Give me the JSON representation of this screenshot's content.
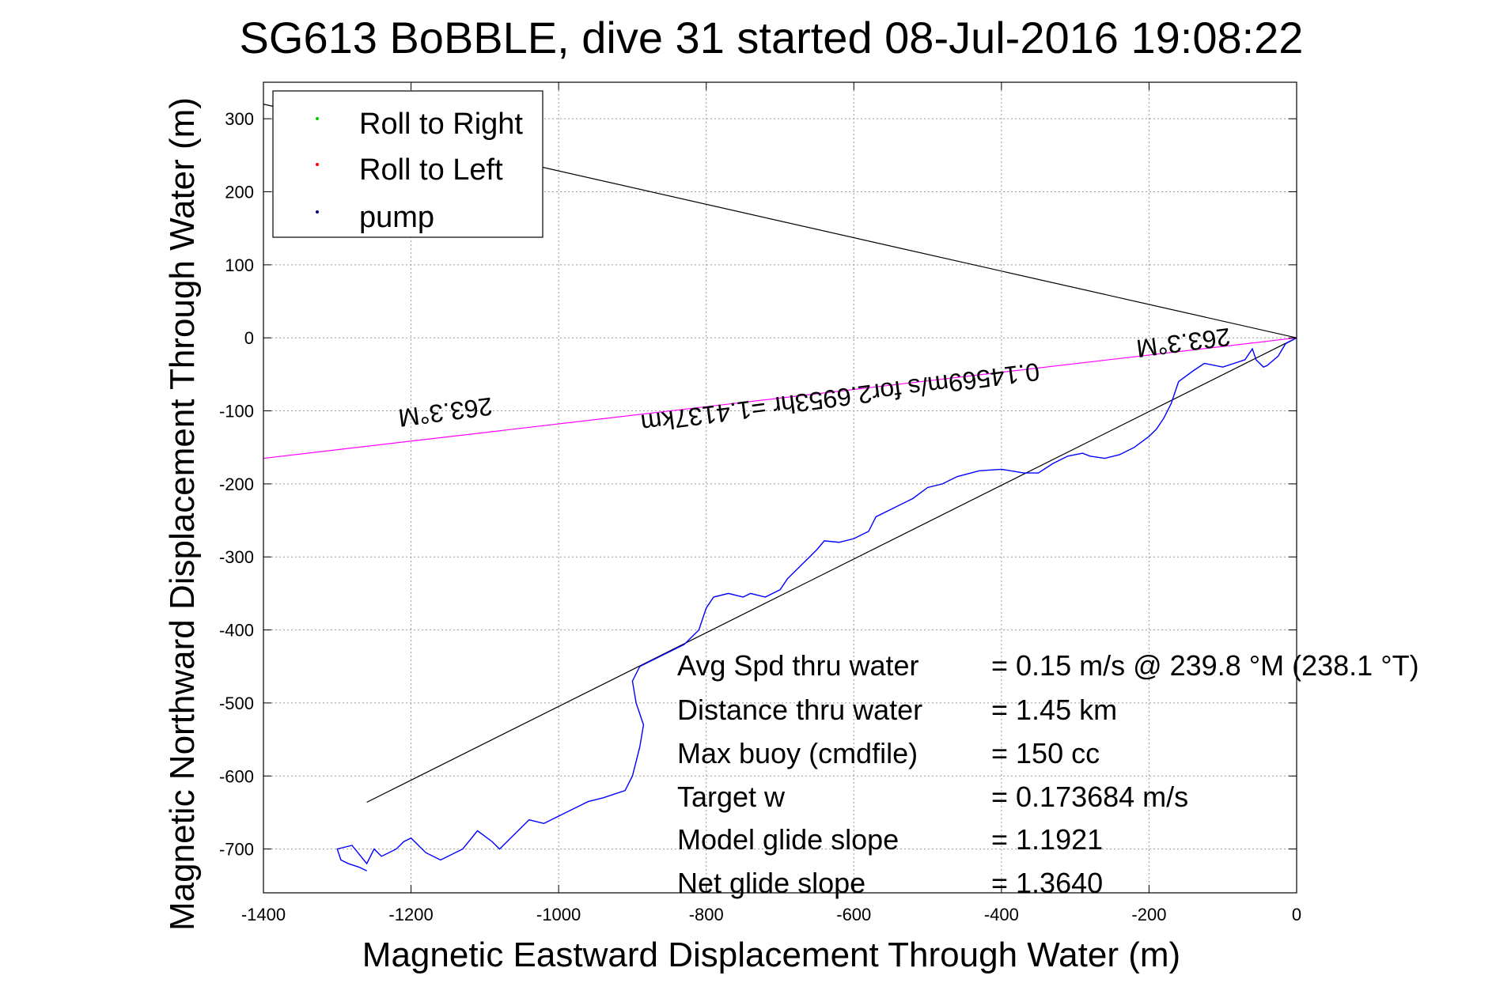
{
  "chart_data": {
    "type": "line",
    "title": "SG613 BoBBLE, dive 31 started 08-Jul-2016 19:08:22",
    "xlabel": "Magnetic Eastward Displacement Through Water (m)",
    "ylabel": "Magnetic Northward Displacement Through Water (m)",
    "xlim": [
      -1400,
      0
    ],
    "ylim": [
      -760,
      350
    ],
    "grid": true,
    "x_ticks": [
      -1400,
      -1200,
      -1000,
      -800,
      -600,
      -400,
      -200,
      0
    ],
    "y_ticks": [
      300,
      200,
      100,
      0,
      -100,
      -200,
      -300,
      -400,
      -500,
      -600,
      -700
    ],
    "legend": {
      "placement": "top-left",
      "entries": [
        {
          "label": "Roll to Right",
          "color": "#00cc00"
        },
        {
          "label": "Roll to Left",
          "color": "#ff0000"
        },
        {
          "label": "pump",
          "color": "#000080"
        }
      ]
    },
    "series": [
      {
        "color": "#0000ff",
        "x": [
          0,
          -15,
          -25,
          -40,
          -45,
          -55,
          -60,
          -70,
          -100,
          -125,
          -140,
          -160,
          -170,
          -180,
          -190,
          -200,
          -220,
          -240,
          -260,
          -280,
          -290,
          -310,
          -330,
          -350,
          -370,
          -400,
          -430,
          -460,
          -480,
          -500,
          -520,
          -550,
          -570,
          -580,
          -600,
          -620,
          -640,
          -650,
          -670,
          -690,
          -700,
          -720,
          -740,
          -750,
          -770,
          -790,
          -800,
          -810,
          -830,
          -860,
          -880,
          -890,
          -900,
          -895,
          -885,
          -890,
          -900,
          -910,
          -940,
          -960,
          -1000,
          -1020,
          -1040,
          -1060,
          -1080,
          -1090,
          -1110,
          -1130,
          -1160,
          -1180,
          -1200,
          -1210,
          -1220,
          -1240,
          -1250,
          -1260,
          -1280,
          -1300,
          -1295,
          -1285,
          -1270,
          -1260
        ],
        "y": [
          0,
          -8,
          -25,
          -38,
          -40,
          -30,
          -15,
          -30,
          -40,
          -35,
          -45,
          -60,
          -90,
          -110,
          -125,
          -135,
          -150,
          -160,
          -165,
          -162,
          -158,
          -162,
          -172,
          -185,
          -185,
          -180,
          -182,
          -190,
          -200,
          -205,
          -220,
          -235,
          -245,
          -265,
          -275,
          -280,
          -278,
          -290,
          -310,
          -330,
          -345,
          -355,
          -350,
          -355,
          -350,
          -355,
          -370,
          -400,
          -420,
          -435,
          -445,
          -450,
          -470,
          -500,
          -530,
          -560,
          -600,
          -620,
          -630,
          -635,
          -655,
          -665,
          -660,
          -680,
          -700,
          -690,
          -675,
          -700,
          -715,
          -705,
          -685,
          -690,
          -700,
          -710,
          -700,
          -720,
          -695,
          -700,
          -715,
          -720,
          -725,
          -730
        ]
      }
    ],
    "reference_lines": [
      {
        "name": "heading line",
        "color": "#ff00ff",
        "x": [
          0,
          -1400
        ],
        "y": [
          0,
          -165
        ]
      },
      {
        "name": "cone upper",
        "color": "#000000",
        "x": [
          0,
          -1400
        ],
        "y": [
          0,
          320
        ]
      },
      {
        "name": "cone lower",
        "color": "#000000",
        "x": [
          0,
          -1260
        ],
        "y": [
          0,
          -636
        ]
      }
    ],
    "annotations": [
      {
        "text": "263.3°M",
        "x": -155,
        "y": 5,
        "rotation": 172.5
      },
      {
        "text": "0.14569m/s for2.6953hr =1.4137km",
        "x": -620,
        "y": -70,
        "rotation": 172.5
      },
      {
        "text": "263.3°M",
        "x": -1155,
        "y": -90,
        "rotation": 172.5
      }
    ],
    "stats": [
      {
        "label": "Avg Spd thru water",
        "value": "=  0.15 m/s @ 239.8 °M (238.1 °T)"
      },
      {
        "label": "Distance thru water",
        "value": "=  1.45 km"
      },
      {
        "label": "Max buoy (cmdfile)",
        "value": "= 150 cc"
      },
      {
        "label": "Target w",
        "value": "= 0.173684 m/s"
      },
      {
        "label": "Model glide slope",
        "value": "= 1.1921"
      },
      {
        "label": "Net glide slope",
        "value": "= 1.3640"
      }
    ]
  }
}
